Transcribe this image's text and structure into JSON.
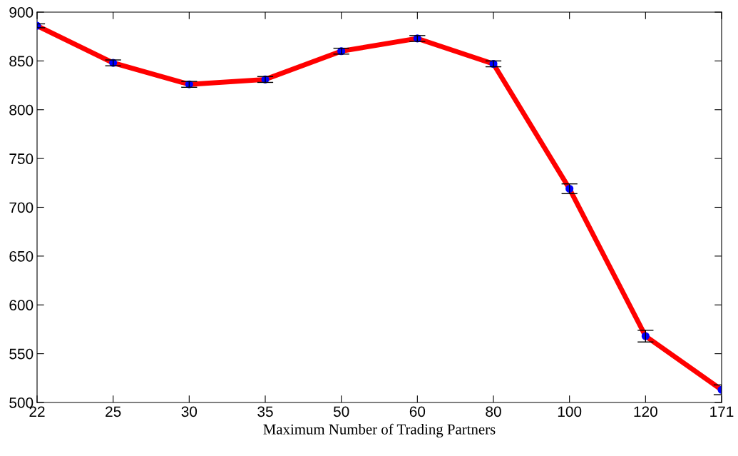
{
  "chart_data": {
    "type": "line",
    "xlabel": "Maximum Number of Trading Partners",
    "categories": [
      "22",
      "25",
      "30",
      "35",
      "50",
      "60",
      "80",
      "100",
      "120",
      "171"
    ],
    "series": [
      {
        "color": "#ff0000",
        "values": [
          886,
          848,
          826,
          831,
          860,
          873,
          847,
          719,
          568,
          513
        ],
        "errors": [
          2,
          3,
          3,
          3,
          3,
          3,
          3,
          5,
          6,
          5
        ]
      }
    ],
    "ylim": [
      500,
      900
    ],
    "yticks": [
      500,
      550,
      600,
      650,
      700,
      750,
      800,
      850,
      900
    ],
    "marker": "circle",
    "grid": false,
    "legend": false
  }
}
